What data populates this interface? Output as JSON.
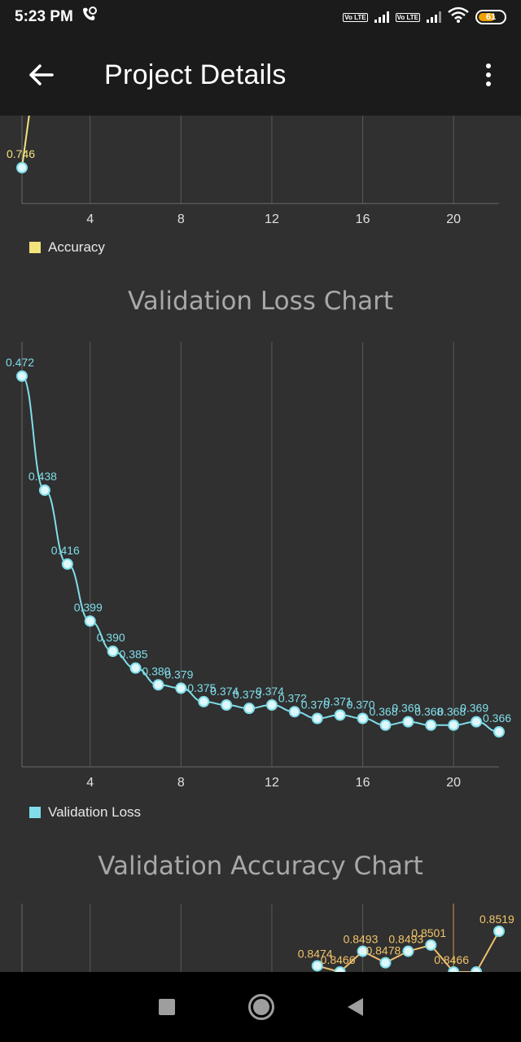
{
  "status_bar": {
    "time": "5:23 PM",
    "volte1": "Vo LTE",
    "volte2": "Vo LTE",
    "battery": "61"
  },
  "app_bar": {
    "title": "Project Details",
    "back_icon": "arrow-left-icon",
    "menu_icon": "more-vert-icon"
  },
  "colors": {
    "accuracy": "#f3e37c",
    "validation_loss": "#80deea",
    "validation_accuracy_line": "#f0c070",
    "validation_accuracy_label": "#f3c46a",
    "grid": "#5a5a5a",
    "axis_text": "#e0e0e0"
  },
  "chart_data": [
    {
      "type": "line",
      "title": "",
      "x": [
        1
      ],
      "series": [
        {
          "name": "Accuracy",
          "values": [
            0.746
          ],
          "labels": [
            "0.746"
          ]
        }
      ],
      "xticks": [
        "4",
        "8",
        "12",
        "16",
        "20"
      ],
      "xlim": [
        1,
        22
      ],
      "grid": true,
      "legend": "bottom-left"
    },
    {
      "type": "line",
      "title": "Validation Loss Chart",
      "x": [
        1,
        2,
        3,
        4,
        5,
        6,
        7,
        8,
        9,
        10,
        11,
        12,
        13,
        14,
        15,
        16,
        17,
        18,
        19,
        20,
        21,
        22
      ],
      "series": [
        {
          "name": "Validation Loss",
          "values": [
            0.472,
            0.438,
            0.416,
            0.399,
            0.39,
            0.385,
            0.38,
            0.379,
            0.375,
            0.374,
            0.373,
            0.374,
            0.372,
            0.37,
            0.371,
            0.37,
            0.368,
            0.369,
            0.368,
            0.368,
            0.369,
            0.366
          ],
          "labels": [
            "0.472",
            "0.438",
            "0.416",
            "0.399",
            "0.390",
            "0.385",
            "0.380",
            "0.379",
            "0.375",
            "0.374",
            "0.373",
            "0.374",
            "0.372",
            "0.370",
            "0.371",
            "0.370",
            "0.368",
            "0.369",
            "0.368",
            "0.368",
            "0.369",
            "0.366"
          ]
        }
      ],
      "xticks": [
        "4",
        "8",
        "12",
        "16",
        "20"
      ],
      "xlim": [
        1,
        22
      ],
      "ylim": [
        0.355,
        0.477
      ],
      "grid": true,
      "legend": "bottom-left"
    },
    {
      "type": "line",
      "title": "Validation Accuracy Chart",
      "x": [
        14,
        15,
        16,
        17,
        18,
        19,
        20,
        21,
        22
      ],
      "series": [
        {
          "name": "",
          "values": [
            0.8474,
            0.8466,
            0.8493,
            0.8478,
            0.8493,
            0.8501,
            0.8466,
            0.8466,
            0.8519
          ],
          "labels": [
            "0.8474",
            "0.8466",
            "0.8493",
            "0.8478",
            "0.8493",
            "0.8501",
            "0.8466",
            "",
            "0.8519"
          ]
        }
      ],
      "xlim": [
        1,
        22
      ],
      "grid": true
    }
  ]
}
